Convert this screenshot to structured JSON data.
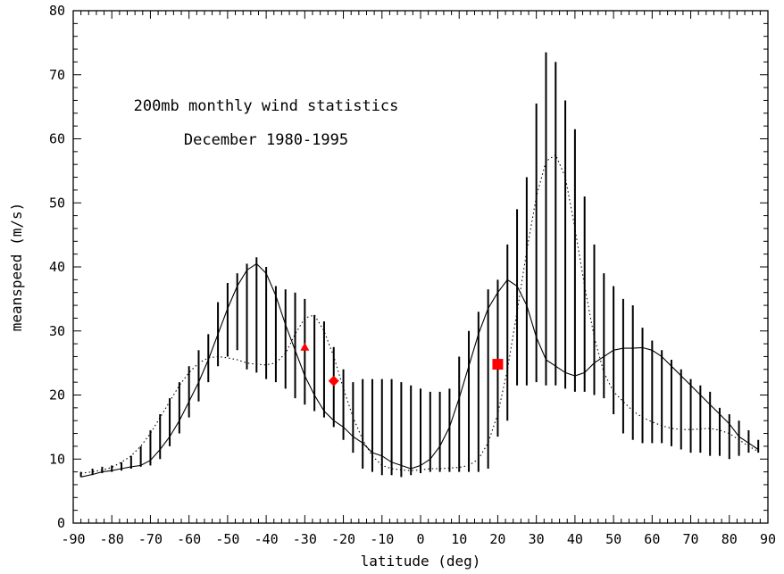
{
  "chart_data": {
    "type": "line",
    "title": "200mb monthly wind statistics",
    "subtitle": "December 1980-1995",
    "xlabel": "latitude (deg)",
    "ylabel": "meanspeed (m/s)",
    "xlim": [
      -90,
      90
    ],
    "ylim": [
      0,
      80
    ],
    "x_ticks": [
      -90,
      -80,
      -70,
      -60,
      -50,
      -40,
      -30,
      -20,
      -10,
      0,
      10,
      20,
      30,
      40,
      50,
      60,
      70,
      80,
      90
    ],
    "y_ticks": [
      0,
      10,
      20,
      30,
      40,
      50,
      60,
      70,
      80
    ],
    "grid": false,
    "series": [
      {
        "style": "solid",
        "x": [
          -88,
          -85,
          -82.5,
          -80,
          -77.5,
          -75,
          -72.5,
          -70,
          -67.5,
          -65,
          -62.5,
          -60,
          -57.5,
          -55,
          -52.5,
          -50,
          -47.5,
          -45,
          -42.5,
          -40,
          -37.5,
          -35,
          -32.5,
          -30,
          -27.5,
          -25,
          -22.5,
          -20,
          -17.5,
          -15,
          -12.5,
          -10,
          -7.5,
          -5,
          -2.5,
          0,
          2.5,
          5,
          7.5,
          10,
          12.5,
          15,
          17.5,
          20,
          22.5,
          25,
          27.5,
          30,
          32.5,
          35,
          37.5,
          40,
          42.5,
          45,
          47.5,
          50,
          52.5,
          55,
          57.5,
          60,
          62.5,
          65,
          67.5,
          70,
          72.5,
          75,
          77.5,
          80,
          82.5,
          85,
          87.5
        ],
        "y": [
          7.2,
          7.6,
          8.0,
          8.2,
          8.5,
          8.8,
          9.0,
          9.8,
          11.5,
          13.5,
          16.0,
          19.0,
          22.0,
          25.5,
          29.5,
          33.5,
          37.0,
          39.5,
          40.5,
          39.0,
          35.5,
          31.0,
          27.0,
          23.0,
          20.0,
          17.5,
          16.0,
          15.0,
          13.5,
          12.5,
          11.0,
          10.5,
          9.5,
          9.0,
          8.5,
          9.0,
          10.0,
          12.0,
          15.0,
          19.5,
          24.5,
          29.5,
          33.5,
          36.0,
          38.0,
          37.0,
          34.0,
          29.0,
          25.5,
          24.5,
          23.5,
          23.0,
          23.5,
          25.0,
          26.0,
          27.0,
          27.3,
          27.3,
          27.4,
          27.0,
          26.0,
          24.5,
          23.0,
          21.5,
          20.0,
          18.5,
          17.0,
          15.5,
          13.5,
          12.5,
          11.5
        ]
      },
      {
        "style": "dotted",
        "x": [
          -88,
          -85,
          -82.5,
          -80,
          -77.5,
          -75,
          -72.5,
          -70,
          -67.5,
          -65,
          -62.5,
          -60,
          -57.5,
          -55,
          -52.5,
          -50,
          -47.5,
          -45,
          -42.5,
          -40,
          -37.5,
          -35,
          -32.5,
          -30,
          -27.5,
          -25,
          -22.5,
          -20,
          -17.5,
          -15,
          -12.5,
          -10,
          -7.5,
          -5,
          -2.5,
          0,
          2.5,
          5,
          7.5,
          10,
          12.5,
          15,
          17.5,
          20,
          22.5,
          25,
          27.5,
          30,
          32.5,
          35,
          37.5,
          40,
          42.5,
          45,
          47.5,
          50,
          52.5,
          55,
          57.5,
          60,
          62.5,
          65,
          67.5,
          70,
          72.5,
          75,
          77.5,
          80,
          82.5,
          85,
          87.5
        ],
        "y": [
          7.8,
          8.0,
          8.3,
          8.7,
          9.5,
          10.5,
          12.0,
          14.0,
          16.5,
          19.0,
          21.5,
          23.5,
          25.0,
          25.8,
          26.0,
          25.8,
          25.5,
          25.0,
          24.8,
          24.7,
          25.0,
          26.5,
          29.5,
          32.0,
          32.5,
          30.0,
          26.0,
          21.0,
          16.5,
          13.0,
          10.5,
          9.0,
          8.5,
          8.3,
          8.2,
          8.3,
          8.5,
          8.5,
          8.6,
          8.7,
          9.0,
          10.0,
          12.5,
          17.0,
          24.0,
          33.0,
          42.5,
          51.0,
          56.5,
          57.5,
          54.0,
          46.0,
          37.0,
          29.0,
          23.5,
          20.5,
          19.0,
          17.5,
          16.5,
          15.8,
          15.2,
          14.8,
          14.6,
          14.6,
          14.7,
          14.8,
          14.5,
          14.0,
          13.0,
          12.0,
          11.2
        ]
      },
      {
        "style": "error-bars",
        "x": [
          -88,
          -85,
          -82.5,
          -80,
          -77.5,
          -75,
          -72.5,
          -70,
          -67.5,
          -65,
          -62.5,
          -60,
          -57.5,
          -55,
          -52.5,
          -50,
          -47.5,
          -45,
          -42.5,
          -40,
          -37.5,
          -35,
          -32.5,
          -30,
          -27.5,
          -25,
          -22.5,
          -20,
          -17.5,
          -15,
          -12.5,
          -10,
          -7.5,
          -5,
          -2.5,
          0,
          2.5,
          5,
          7.5,
          10,
          12.5,
          15,
          17.5,
          20,
          22.5,
          25,
          27.5,
          30,
          32.5,
          35,
          37.5,
          40,
          42.5,
          45,
          47.5,
          50,
          52.5,
          55,
          57.5,
          60,
          62.5,
          65,
          67.5,
          70,
          72.5,
          75,
          77.5,
          80,
          82.5,
          85,
          87.5
        ],
        "low": [
          7.2,
          7.5,
          7.8,
          8.0,
          8.2,
          8.5,
          8.8,
          9.0,
          10.0,
          12.0,
          14.0,
          16.5,
          19.0,
          22.0,
          24.5,
          26.0,
          27.0,
          24.0,
          23.5,
          22.5,
          22.0,
          21.0,
          19.5,
          18.5,
          17.5,
          16.5,
          15.0,
          13.0,
          11.0,
          8.5,
          8.0,
          7.5,
          7.5,
          7.2,
          7.5,
          7.8,
          8.0,
          8.0,
          8.0,
          8.0,
          8.0,
          8.0,
          8.5,
          13.5,
          16.0,
          21.5,
          21.5,
          22.0,
          21.5,
          21.5,
          21.0,
          20.5,
          20.5,
          20.0,
          19.5,
          17.0,
          14.0,
          13.0,
          12.5,
          12.5,
          12.5,
          12.0,
          11.5,
          11.0,
          11.0,
          10.5,
          10.5,
          10.0,
          10.5,
          11.0,
          11.0
        ],
        "high": [
          8.0,
          8.5,
          8.8,
          9.0,
          9.5,
          10.5,
          12.0,
          14.5,
          17.0,
          19.5,
          22.0,
          24.5,
          27.0,
          29.5,
          34.5,
          37.5,
          39.0,
          40.5,
          41.5,
          40.0,
          37.0,
          36.5,
          36.0,
          35.0,
          32.5,
          31.5,
          27.5,
          24.0,
          22.0,
          22.5,
          22.5,
          22.5,
          22.5,
          22.0,
          21.5,
          21.0,
          20.5,
          20.5,
          21.0,
          26.0,
          30.0,
          33.0,
          36.5,
          38.0,
          43.5,
          49.0,
          54.0,
          65.5,
          73.5,
          72.0,
          66.0,
          61.5,
          51.0,
          43.5,
          39.0,
          37.0,
          35.0,
          34.0,
          30.5,
          28.5,
          27.0,
          25.5,
          24.0,
          22.5,
          21.5,
          20.5,
          18.0,
          17.0,
          16.0,
          14.5,
          13.0
        ]
      }
    ],
    "markers": [
      {
        "shape": "triangle",
        "color": "#ff0000",
        "x": -30,
        "y": 27.5
      },
      {
        "shape": "diamond",
        "color": "#ff0000",
        "x": -22.5,
        "y": 22.2
      },
      {
        "shape": "square",
        "color": "#ff0000",
        "x": 20,
        "y": 24.8
      }
    ]
  }
}
